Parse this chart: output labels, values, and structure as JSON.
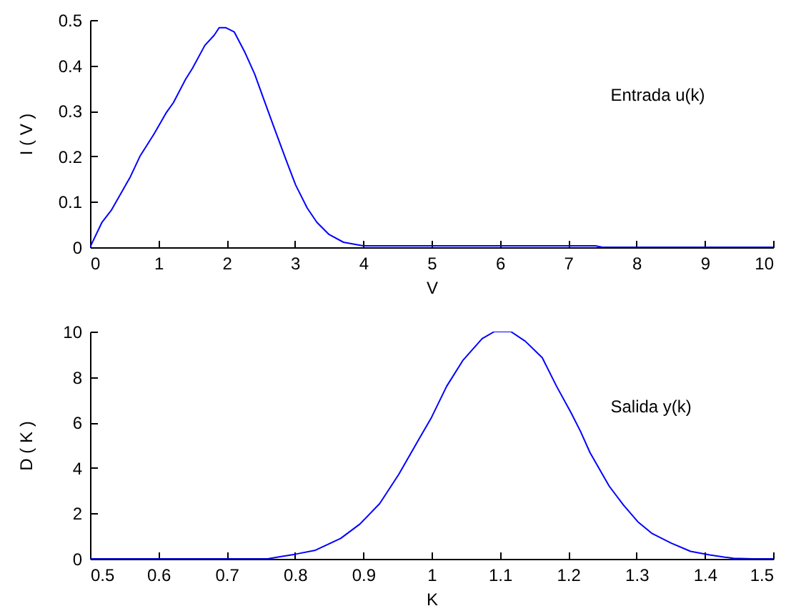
{
  "chart_data": [
    {
      "type": "line",
      "xlabel": "V",
      "ylabel": "I ( V )",
      "annotations": [
        "Entrada u(k)"
      ],
      "color": "#0000ff",
      "x": [
        0,
        0.175,
        0.31,
        0.45,
        0.59,
        0.73,
        0.94,
        1.12,
        1.22,
        1.4,
        1.5,
        1.68,
        1.82,
        1.89,
        1.99,
        2.11,
        2.27,
        2.41,
        2.55,
        2.69,
        2.87,
        3.01,
        3.18,
        3.32,
        3.5,
        3.71,
        4.0,
        5,
        6,
        7,
        7.4,
        7.5,
        8,
        9,
        10
      ],
      "values": [
        0,
        0.055,
        0.081,
        0.118,
        0.155,
        0.2,
        0.25,
        0.297,
        0.318,
        0.37,
        0.394,
        0.444,
        0.467,
        0.483,
        0.483,
        0.474,
        0.428,
        0.381,
        0.323,
        0.265,
        0.192,
        0.137,
        0.086,
        0.055,
        0.028,
        0.011,
        0.003,
        0.003,
        0.003,
        0.003,
        0.003,
        0,
        0,
        0,
        0
      ],
      "xlim": [
        0,
        10
      ],
      "xticks": [
        0,
        1,
        2,
        3,
        4,
        5,
        6,
        7,
        8,
        9,
        10
      ],
      "ylim": [
        0,
        0.5
      ],
      "yticks": [
        0,
        0.1,
        0.2,
        0.3,
        0.4,
        0.5
      ]
    },
    {
      "type": "line",
      "xlabel": "K",
      "ylabel": "D ( K )",
      "annotations": [
        "Salida y(k)"
      ],
      "color": "#0000ff",
      "x": [
        0.5,
        0.6,
        0.7,
        0.76,
        0.78,
        0.8,
        0.83,
        0.867,
        0.895,
        0.924,
        0.952,
        0.98,
        1.0,
        1.022,
        1.046,
        1.074,
        1.092,
        1.116,
        1.137,
        1.162,
        1.183,
        1.204,
        1.218,
        1.232,
        1.26,
        1.281,
        1.302,
        1.323,
        1.351,
        1.379,
        1.407,
        1.442,
        1.47,
        1.5
      ],
      "values": [
        0,
        0,
        0,
        0,
        0.1,
        0.2,
        0.38,
        0.9,
        1.53,
        2.43,
        3.72,
        5.19,
        6.23,
        7.59,
        8.74,
        9.69,
        10.0,
        10.0,
        9.58,
        8.85,
        7.59,
        6.44,
        5.61,
        4.67,
        3.2,
        2.36,
        1.63,
        1.11,
        0.69,
        0.33,
        0.17,
        0.02,
        0,
        0
      ],
      "xlim": [
        0.5,
        1.5
      ],
      "xticks": [
        0.5,
        0.6,
        0.7,
        0.8,
        0.9,
        1,
        1.1,
        1.2,
        1.3,
        1.4,
        1.5
      ],
      "ylim": [
        0,
        10
      ],
      "yticks": [
        0,
        2,
        4,
        6,
        8,
        10
      ]
    }
  ]
}
